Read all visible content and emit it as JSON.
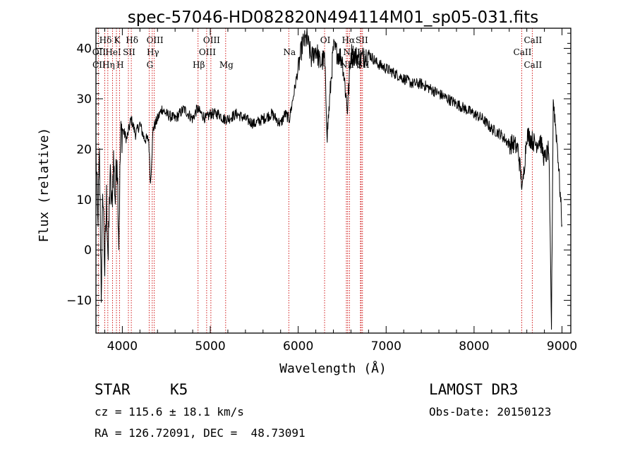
{
  "chart_data": {
    "type": "line",
    "title": "spec-57046-HD082820N494114M01_sp05-031.fits",
    "xlabel": "Wavelength (Å)",
    "ylabel": "Flux (relative)",
    "xlim": [
      3700,
      9100
    ],
    "ylim": [
      -16.5,
      44
    ],
    "xticks": [
      4000,
      5000,
      6000,
      7000,
      8000,
      9000
    ],
    "xtick_labels": [
      "4000",
      "5000",
      "6000",
      "7000",
      "8000",
      "9000"
    ],
    "yticks": [
      -10,
      0,
      10,
      20,
      30,
      40
    ],
    "ytick_labels": [
      "−10",
      "0",
      "10",
      "20",
      "30",
      "40"
    ],
    "series": [
      {
        "name": "flux",
        "x": [
          3700,
          3720,
          3740,
          3760,
          3780,
          3800,
          3820,
          3840,
          3860,
          3880,
          3900,
          3920,
          3940,
          3960,
          3980,
          4000,
          4050,
          4100,
          4150,
          4200,
          4250,
          4300,
          4320,
          4350,
          4400,
          4450,
          4500,
          4600,
          4700,
          4800,
          4850,
          4900,
          4950,
          5000,
          5100,
          5150,
          5200,
          5300,
          5400,
          5500,
          5600,
          5700,
          5800,
          5850,
          5900,
          5950,
          6000,
          6050,
          6100,
          6150,
          6200,
          6250,
          6300,
          6330,
          6400,
          6500,
          6560,
          6600,
          6700,
          6800,
          6900,
          7000,
          7100,
          7200,
          7300,
          7400,
          7500,
          7600,
          7700,
          7800,
          7900,
          8000,
          8100,
          8200,
          8300,
          8400,
          8450,
          8500,
          8550,
          8600,
          8650,
          8700,
          8750,
          8800,
          8850,
          8880,
          8900,
          8950,
          9000
        ],
        "values": [
          20,
          5,
          18,
          -8,
          12,
          -4,
          10,
          -2,
          15,
          8,
          18,
          10,
          20,
          2,
          22,
          24,
          22,
          26,
          23,
          25,
          22,
          22,
          13,
          24,
          26,
          28,
          27,
          26,
          28,
          26,
          28,
          27,
          26,
          27,
          27,
          26,
          26,
          27,
          26,
          25,
          26,
          27,
          25,
          27,
          26,
          31,
          36,
          41,
          42,
          38,
          40,
          37,
          38,
          23,
          40,
          38,
          28,
          39,
          38,
          39,
          37,
          36,
          35,
          34,
          33,
          33,
          32,
          31,
          30,
          29,
          28,
          27,
          26,
          24,
          23,
          21,
          21,
          20,
          12,
          23,
          22,
          21,
          22,
          18,
          20,
          -15,
          30,
          20,
          5
        ]
      }
    ],
    "spectral_lines": [
      {
        "label": "Hδ",
        "x": 3800,
        "row": 1
      },
      {
        "label": "K",
        "x": 3933,
        "row": 1
      },
      {
        "label": "Hδ",
        "x": 4102,
        "row": 1
      },
      {
        "label": "OIII",
        "x": 4363,
        "row": 1
      },
      {
        "label": "OIII",
        "x": 5007,
        "row": 1
      },
      {
        "label": "OI",
        "x": 6300,
        "row": 1
      },
      {
        "label": "Hα",
        "x": 6563,
        "row": 1
      },
      {
        "label": "SII",
        "x": 6716,
        "row": 1
      },
      {
        "label": "CaII",
        "x": 8662,
        "row": 1
      },
      {
        "label": "OII",
        "x": 3727,
        "row": 2
      },
      {
        "label": "HeI",
        "x": 3889,
        "row": 2
      },
      {
        "label": "SII",
        "x": 4069,
        "row": 2
      },
      {
        "label": "Hγ",
        "x": 4340,
        "row": 2
      },
      {
        "label": "OIII",
        "x": 4959,
        "row": 2
      },
      {
        "label": "Na",
        "x": 5893,
        "row": 2
      },
      {
        "label": "NII",
        "x": 6583,
        "row": 2
      },
      {
        "label": "Li",
        "x": 6708,
        "row": 2
      },
      {
        "label": "CaII",
        "x": 8542,
        "row": 2
      },
      {
        "label": "CII",
        "x": 3727,
        "row": 3
      },
      {
        "label": "Hη",
        "x": 3835,
        "row": 3
      },
      {
        "label": "H",
        "x": 3968,
        "row": 3
      },
      {
        "label": "G",
        "x": 4305,
        "row": 3
      },
      {
        "label": "Hβ",
        "x": 4861,
        "row": 3
      },
      {
        "label": "Mg",
        "x": 5175,
        "row": 3
      },
      {
        "label": "NII",
        "x": 6548,
        "row": 3
      },
      {
        "label": "SII",
        "x": 6731,
        "row": 3
      },
      {
        "label": "CaII",
        "x": 8662,
        "row": 3
      }
    ],
    "line_color": "#cc0000"
  },
  "info": {
    "object_class": "STAR",
    "subclass": "K5",
    "cz": "cz = 115.6 ± 18.1 km/s",
    "coords": "RA = 126.72091, DEC =  48.73091",
    "survey": "LAMOST DR3",
    "obs_date": "Obs-Date: 20150123"
  }
}
